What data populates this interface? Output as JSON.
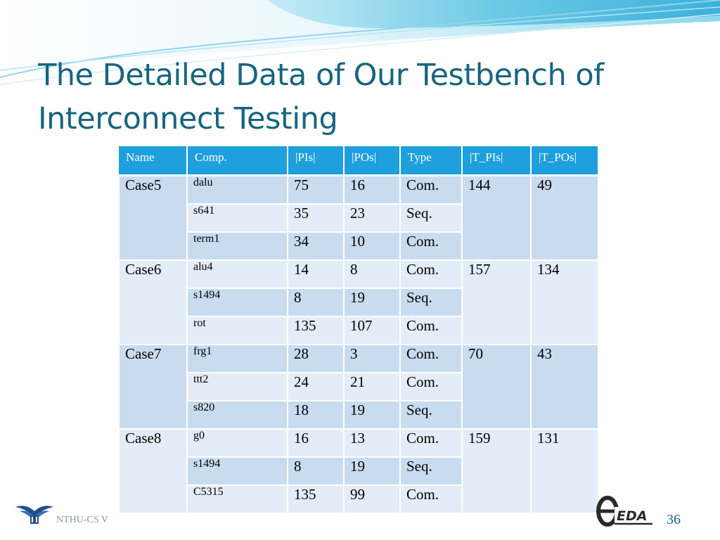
{
  "title": {
    "line1": "The Detailed Data of Our Testbench of",
    "line2": "Interconnect Testing"
  },
  "table": {
    "headers": [
      "Name",
      "Comp.",
      "|PIs|",
      "|POs|",
      "Type",
      "|T_PIs|",
      "|T_POs|"
    ],
    "groups": [
      {
        "name": "Case5",
        "t_pis": "144",
        "t_pos": "49",
        "rows": [
          {
            "comp": "dalu",
            "pis": "75",
            "pos": "16",
            "type": "Com."
          },
          {
            "comp": "s641",
            "pis": "35",
            "pos": "23",
            "type": "Seq."
          },
          {
            "comp": "term1",
            "pis": "34",
            "pos": "10",
            "type": "Com."
          }
        ]
      },
      {
        "name": "Case6",
        "t_pis": "157",
        "t_pos": "134",
        "rows": [
          {
            "comp": "alu4",
            "pis": "14",
            "pos": "8",
            "type": "Com."
          },
          {
            "comp": "s1494",
            "pis": "8",
            "pos": "19",
            "type": "Seq."
          },
          {
            "comp": "rot",
            "pis": "135",
            "pos": "107",
            "type": "Com."
          }
        ]
      },
      {
        "name": "Case7",
        "t_pis": "70",
        "t_pos": "43",
        "rows": [
          {
            "comp": "frg1",
            "pis": "28",
            "pos": "3",
            "type": "Com."
          },
          {
            "comp": "ttt2",
            "pis": "24",
            "pos": "21",
            "type": "Com."
          },
          {
            "comp": "s820",
            "pis": "18",
            "pos": "19",
            "type": "Seq."
          }
        ]
      },
      {
        "name": "Case8",
        "t_pis": "159",
        "t_pos": "131",
        "rows": [
          {
            "comp": "g0",
            "pis": "16",
            "pos": "13",
            "type": "Com."
          },
          {
            "comp": "s1494",
            "pis": "8",
            "pos": "19",
            "type": "Seq."
          },
          {
            "comp": "C5315",
            "pis": "135",
            "pos": "99",
            "type": "Com."
          }
        ]
      }
    ]
  },
  "footer": {
    "org_text": "NTHU-CS V",
    "logo_text": "EDA",
    "page_number": "36"
  },
  "colors": {
    "title": "#17657e",
    "header": "#1e9fde",
    "row_dark": "#c9dbef",
    "row_light": "#e4ecf7"
  }
}
